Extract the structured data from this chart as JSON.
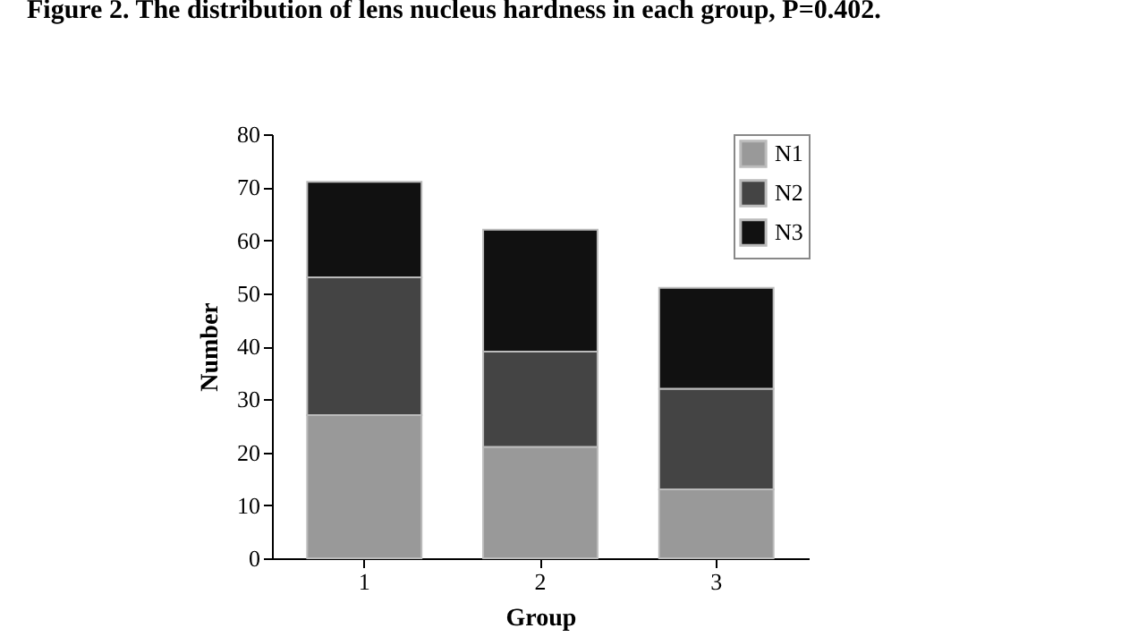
{
  "chart_data": {
    "type": "bar",
    "title": "Figure 2. The distribution of lens nucleus hardness in each group, P=0.402.",
    "xlabel": "Group",
    "ylabel": "Number",
    "categories": [
      "1",
      "2",
      "3"
    ],
    "stacked": true,
    "series": [
      {
        "name": "N1",
        "color": "#999999",
        "values": [
          27,
          21,
          13
        ]
      },
      {
        "name": "N2",
        "color": "#444444",
        "values": [
          26,
          18,
          19
        ]
      },
      {
        "name": "N3",
        "color": "#111111",
        "values": [
          18,
          23,
          19
        ]
      }
    ],
    "ylim": [
      0,
      80
    ],
    "yticks": [
      0,
      10,
      20,
      30,
      40,
      50,
      60,
      70,
      80
    ],
    "grid": false,
    "legend": "top right"
  }
}
